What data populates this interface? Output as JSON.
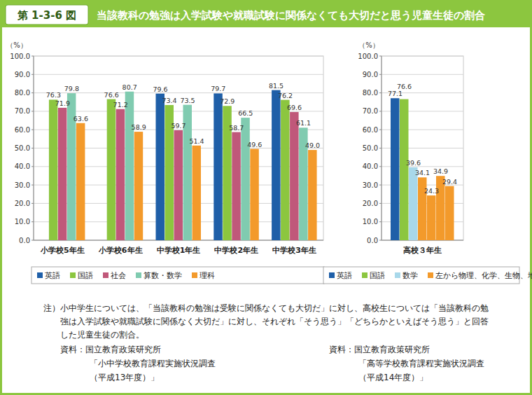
{
  "header": {
    "figure_label": "第 1-3-6 図",
    "title": "当該教科の勉強は入学試験や就職試験に関係なくても大切だと思う児童生徒の割合"
  },
  "chart_data": [
    {
      "type": "bar",
      "y_label": "（%）",
      "categories": [
        "小学校5年生",
        "小学校6年生",
        "中学校1年生",
        "中学校2年生",
        "中学校3年生"
      ],
      "series": [
        {
          "name": "英語",
          "color": "#1f5fa8",
          "values": [
            null,
            null,
            79.6,
            79.7,
            81.5
          ]
        },
        {
          "name": "国語",
          "color": "#8cc63f",
          "values": [
            76.3,
            76.6,
            73.4,
            72.9,
            76.2
          ]
        },
        {
          "name": "社会",
          "color": "#c0587a",
          "values": [
            71.9,
            71.2,
            59.7,
            58.7,
            69.6
          ]
        },
        {
          "name": "算数・数学",
          "color": "#80cbb0",
          "values": [
            79.8,
            80.7,
            73.5,
            66.5,
            61.1
          ]
        },
        {
          "name": "理科",
          "color": "#f39a2b",
          "values": [
            63.6,
            58.9,
            51.4,
            49.6,
            49.0
          ],
          "value_labels": [
            "63.6",
            "58.9",
            "51.4",
            "49.6",
            "49.0"
          ]
        }
      ],
      "ylim": [
        0,
        100
      ],
      "yticks": [
        {
          "value": 0,
          "label": "0.0"
        },
        {
          "value": 10,
          "label": "10.0"
        },
        {
          "value": 20,
          "label": "20.0"
        },
        {
          "value": 30,
          "label": "30.0"
        },
        {
          "value": 40,
          "label": "40.0"
        },
        {
          "value": 50,
          "label": "50.0"
        },
        {
          "value": 60,
          "label": "60.0"
        },
        {
          "value": 70,
          "label": "70.0"
        },
        {
          "value": 80,
          "label": "80.0"
        },
        {
          "value": 90,
          "label": "90.0"
        },
        {
          "value": 100,
          "label": "100.0"
        }
      ],
      "grid": true,
      "data_labels": true,
      "legend": "bottom"
    },
    {
      "type": "bar",
      "y_label": "（%）",
      "categories": [
        "高校３年生"
      ],
      "series": [
        {
          "name": "英語",
          "color": "#1f5fa8",
          "values": [
            77.1
          ]
        },
        {
          "name": "国語",
          "color": "#8cc63f",
          "values": [
            76.6
          ]
        },
        {
          "name": "数学",
          "color": "#a8d8ea",
          "values": [
            39.6
          ]
        },
        {
          "name": "左から物理、化学、生物、地学",
          "color": "#f39a2b",
          "values": [
            34.1
          ]
        },
        {
          "name": "左から物理、化学、生物、地学",
          "color": "#f39a2b",
          "values": [
            24.3
          ]
        },
        {
          "name": "左から物理、化学、生物、地学",
          "color": "#f39a2b",
          "values": [
            34.9
          ]
        },
        {
          "name": "左から物理、化学、生物、地学",
          "color": "#f39a2b",
          "values": [
            29.4
          ]
        }
      ],
      "ylim": [
        0,
        100
      ],
      "yticks": [
        {
          "value": 0,
          "label": "0.0"
        },
        {
          "value": 10,
          "label": "10.0"
        },
        {
          "value": 20,
          "label": "20.0"
        },
        {
          "value": 30,
          "label": "30.0"
        },
        {
          "value": 40,
          "label": "40.0"
        },
        {
          "value": 50,
          "label": "50.0"
        },
        {
          "value": 60,
          "label": "60.0"
        },
        {
          "value": 70,
          "label": "70.0"
        },
        {
          "value": 80,
          "label": "80.0"
        },
        {
          "value": 90,
          "label": "90.0"
        },
        {
          "value": 100,
          "label": "100.0"
        }
      ],
      "grid": true,
      "data_labels": true,
      "legend": "bottom"
    }
  ],
  "note": {
    "label": "注）",
    "lines": [
      "小中学生については、「当該教科の勉強は受験に関係なくても大切だ」に対し、高校生については「当該教科の勉",
      "強は入学試験や就職試験に関係なく大切だ」に対し、それぞれ「そう思う」「どちらかといえばそう思う」と回答",
      "した児童生徒の割合。"
    ]
  },
  "sources": [
    {
      "lines": [
        "資料：国立教育政策研究所",
        "「小中学校教育課程実施状況調査",
        "（平成13年度）」"
      ]
    },
    {
      "lines": [
        "資料：国立教育政策研究所",
        "「高等学校教育課程実施状況調査",
        "（平成14年度）」"
      ]
    }
  ]
}
